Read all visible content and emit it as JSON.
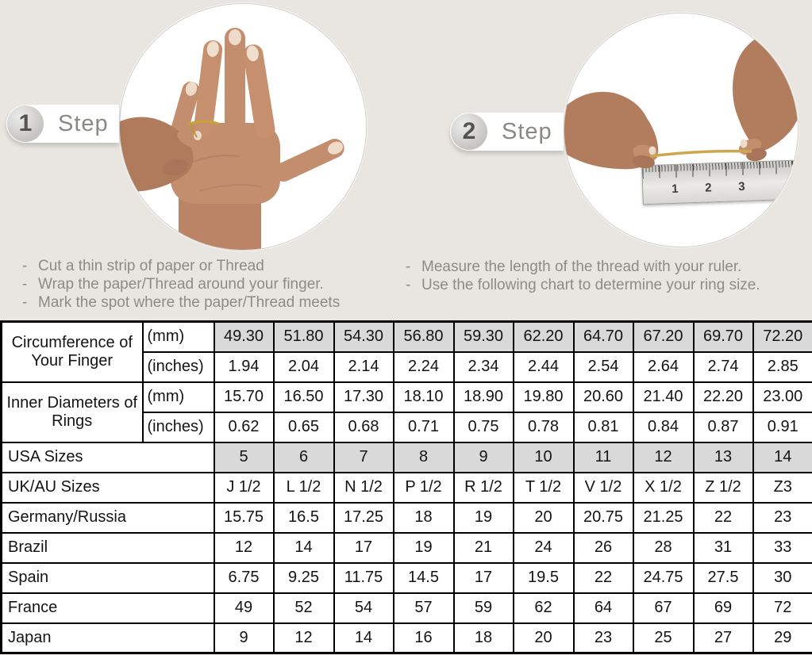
{
  "colors": {
    "background": "#e9e6e1",
    "table_shaded_cell": "#d9d9d9",
    "thread_gold": "#c7a23a"
  },
  "steps": [
    {
      "number": "1",
      "label": "Step",
      "photo": "back-of-hand-with-thread-wrapped-around-ring-finger",
      "instructions": [
        "Cut a thin strip of paper or Thread",
        "Wrap the paper/Thread around your finger.",
        "Mark the spot where the paper/Thread meets"
      ]
    },
    {
      "number": "2",
      "label": "Step",
      "photo": "two-hands-measuring-thread-length-on-ruler",
      "ruler_numbers": [
        "1",
        "2",
        "3"
      ],
      "instructions": [
        "Measure the length of the thread with your ruler.",
        "Use the following chart to determine your ring size."
      ]
    }
  ],
  "table": {
    "row_groups": [
      {
        "label": "Circumference of Your Finger",
        "rows": [
          {
            "sublabel": "(mm)",
            "shaded": true,
            "values": [
              "49.30",
              "51.80",
              "54.30",
              "56.80",
              "59.30",
              "62.20",
              "64.70",
              "67.20",
              "69.70",
              "72.20"
            ]
          },
          {
            "sublabel": "(inches)",
            "shaded": false,
            "values": [
              "1.94",
              "2.04",
              "2.14",
              "2.24",
              "2.34",
              "2.44",
              "2.54",
              "2.64",
              "2.74",
              "2.85"
            ]
          }
        ]
      },
      {
        "label": "Inner Diameters of Rings",
        "rows": [
          {
            "sublabel": "(mm)",
            "shaded": false,
            "values": [
              "15.70",
              "16.50",
              "17.30",
              "18.10",
              "18.90",
              "19.80",
              "20.60",
              "21.40",
              "22.20",
              "23.00"
            ]
          },
          {
            "sublabel": "(inches)",
            "shaded": false,
            "values": [
              "0.62",
              "0.65",
              "0.68",
              "0.71",
              "0.75",
              "0.78",
              "0.81",
              "0.84",
              "0.87",
              "0.91"
            ]
          }
        ]
      }
    ],
    "size_rows": [
      {
        "label": "USA Sizes",
        "shaded": true,
        "values": [
          "5",
          "6",
          "7",
          "8",
          "9",
          "10",
          "11",
          "12",
          "13",
          "14"
        ]
      },
      {
        "label": "UK/AU Sizes",
        "shaded": false,
        "values": [
          "J 1/2",
          "L 1/2",
          "N 1/2",
          "P 1/2",
          "R 1/2",
          "T 1/2",
          "V 1/2",
          "X 1/2",
          "Z 1/2",
          "Z3"
        ]
      },
      {
        "label": "Germany/Russia",
        "shaded": false,
        "values": [
          "15.75",
          "16.5",
          "17.25",
          "18",
          "19",
          "20",
          "20.75",
          "21.25",
          "22",
          "23"
        ]
      },
      {
        "label": "Brazil",
        "shaded": false,
        "values": [
          "12",
          "14",
          "17",
          "19",
          "21",
          "24",
          "26",
          "28",
          "31",
          "33"
        ]
      },
      {
        "label": "Spain",
        "shaded": false,
        "values": [
          "6.75",
          "9.25",
          "11.75",
          "14.5",
          "17",
          "19.5",
          "22",
          "24.75",
          "27.5",
          "30"
        ]
      },
      {
        "label": "France",
        "shaded": false,
        "values": [
          "49",
          "52",
          "54",
          "57",
          "59",
          "62",
          "64",
          "67",
          "69",
          "72"
        ]
      },
      {
        "label": "Japan",
        "shaded": false,
        "values": [
          "9",
          "12",
          "14",
          "16",
          "18",
          "20",
          "23",
          "25",
          "27",
          "29"
        ]
      }
    ]
  }
}
